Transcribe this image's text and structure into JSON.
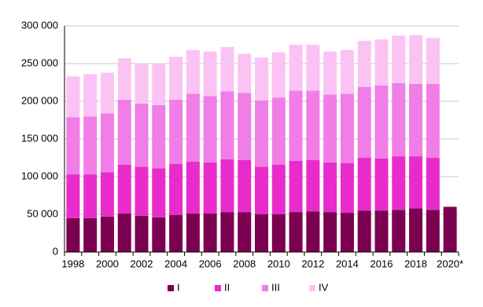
{
  "chart_data": {
    "type": "stacked-bar",
    "categories": [
      "1998",
      null,
      "2000",
      null,
      "2002",
      null,
      "2004",
      null,
      "2006",
      null,
      "2008",
      null,
      "2010",
      null,
      "2012",
      null,
      "2014",
      null,
      "2016",
      null,
      "2018",
      null,
      "2020*"
    ],
    "series": [
      {
        "name": "I",
        "color": "#7b0050",
        "values": [
          45000,
          45000,
          47000,
          51000,
          48000,
          46000,
          49000,
          51000,
          51000,
          53000,
          53000,
          50000,
          50000,
          53000,
          54000,
          53000,
          52000,
          55000,
          55000,
          56000,
          58000,
          56000,
          60000
        ]
      },
      {
        "name": "II",
        "color": "#e82ccc",
        "values": [
          58000,
          58000,
          59000,
          65000,
          65000,
          65000,
          68000,
          69000,
          68000,
          70000,
          69000,
          63000,
          66000,
          68000,
          68000,
          66000,
          66000,
          70000,
          69000,
          71000,
          69000,
          69000,
          null
        ]
      },
      {
        "name": "III",
        "color": "#f07ee6",
        "values": [
          76000,
          77000,
          78000,
          86000,
          84000,
          84000,
          85000,
          90000,
          88000,
          90000,
          89000,
          88000,
          89000,
          93000,
          92000,
          90000,
          92000,
          94000,
          97000,
          97000,
          96000,
          98000,
          null
        ]
      },
      {
        "name": "IV",
        "color": "#fac3f4",
        "values": [
          54000,
          56000,
          54000,
          55000,
          53000,
          55000,
          57000,
          58000,
          59000,
          59000,
          52000,
          57000,
          60000,
          61000,
          61000,
          57000,
          58000,
          61000,
          61000,
          63000,
          65000,
          61000,
          null
        ]
      }
    ],
    "ylim": [
      0,
      300000
    ],
    "yticks": [
      0,
      {
        "value": 50000,
        "label": "50 000"
      },
      {
        "value": 100000,
        "label": "100 000"
      },
      {
        "value": 150000,
        "label": "150 000"
      },
      {
        "value": 200000,
        "label": "200 000"
      },
      {
        "value": 250000,
        "label": "250 000"
      },
      {
        "value": 300000,
        "label": "300 000"
      }
    ],
    "grid": true
  }
}
